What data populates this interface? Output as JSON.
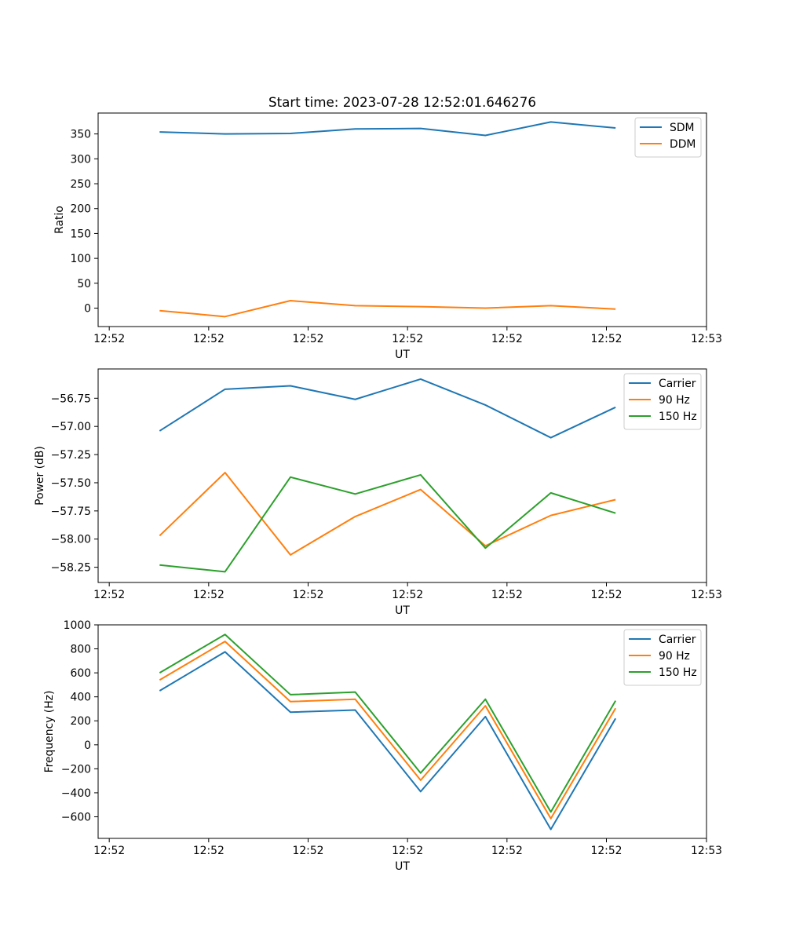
{
  "chart_data": [
    {
      "type": "line",
      "title": "Start time: 2023-07-28 12:52:01.646276",
      "xlabel": "UT",
      "ylabel": "Ratio",
      "xlim": [
        0,
        9.3
      ],
      "xticks": [
        0.17,
        1.69,
        3.21,
        4.73,
        6.25,
        7.77,
        9.3
      ],
      "xtick_labels": [
        "12:52",
        "12:52",
        "12:52",
        "12:52",
        "12:52",
        "12:52",
        "12:53"
      ],
      "ylim": [
        -37,
        392
      ],
      "yticks": [
        0,
        50,
        100,
        150,
        200,
        250,
        300,
        350
      ],
      "ytick_labels": [
        "0",
        "50",
        "100",
        "150",
        "200",
        "250",
        "300",
        "350"
      ],
      "legend_position": "top-right",
      "x": [
        0.94,
        1.94,
        2.94,
        3.93,
        4.93,
        5.92,
        6.92,
        7.91
      ],
      "series": [
        {
          "name": "SDM",
          "color": "#1f77b4",
          "values": [
            354,
            350,
            351,
            360,
            361,
            347,
            374,
            362
          ]
        },
        {
          "name": "DDM",
          "color": "#ff7f0e",
          "values": [
            -5,
            -17,
            15,
            5,
            3,
            0,
            5,
            -2
          ]
        }
      ]
    },
    {
      "type": "line",
      "title": "",
      "xlabel": "UT",
      "ylabel": "Power (dB)",
      "xlim": [
        0,
        9.3
      ],
      "xticks": [
        0.17,
        1.69,
        3.21,
        4.73,
        6.25,
        7.77,
        9.3
      ],
      "xtick_labels": [
        "12:52",
        "12:52",
        "12:52",
        "12:52",
        "12:52",
        "12:52",
        "12:53"
      ],
      "ylim": [
        -58.385,
        -56.49
      ],
      "yticks": [
        -58.25,
        -58.0,
        -57.75,
        -57.5,
        -57.25,
        -57.0,
        -56.75
      ],
      "ytick_labels": [
        "−58.25",
        "−58.00",
        "−57.75",
        "−57.50",
        "−57.25",
        "−57.00",
        "−56.75"
      ],
      "legend_position": "top-right",
      "x": [
        0.94,
        1.94,
        2.94,
        3.93,
        4.93,
        5.92,
        6.92,
        7.91
      ],
      "series": [
        {
          "name": "Carrier",
          "color": "#1f77b4",
          "values": [
            -57.04,
            -56.67,
            -56.64,
            -56.76,
            -56.58,
            -56.81,
            -57.1,
            -56.83
          ]
        },
        {
          "name": "90 Hz",
          "color": "#ff7f0e",
          "values": [
            -57.97,
            -57.41,
            -58.14,
            -57.8,
            -57.56,
            -58.06,
            -57.79,
            -57.65
          ]
        },
        {
          "name": "150 Hz",
          "color": "#2ca02c",
          "values": [
            -58.23,
            -58.29,
            -57.45,
            -57.6,
            -57.43,
            -58.08,
            -57.59,
            -57.77
          ]
        }
      ]
    },
    {
      "type": "line",
      "title": "",
      "xlabel": "UT",
      "ylabel": "Frequency (Hz)",
      "xlim": [
        0,
        9.3
      ],
      "xticks": [
        0.17,
        1.69,
        3.21,
        4.73,
        6.25,
        7.77,
        9.3
      ],
      "xtick_labels": [
        "12:52",
        "12:52",
        "12:52",
        "12:52",
        "12:52",
        "12:52",
        "12:53"
      ],
      "ylim": [
        -780,
        1000
      ],
      "yticks": [
        -600,
        -400,
        -200,
        0,
        200,
        400,
        600,
        800,
        1000
      ],
      "ytick_labels": [
        "−600",
        "−400",
        "−200",
        "0",
        "200",
        "400",
        "600",
        "800",
        "1000"
      ],
      "legend_position": "top-right",
      "x": [
        0.94,
        1.94,
        2.94,
        3.93,
        4.93,
        5.92,
        6.92,
        7.91
      ],
      "series": [
        {
          "name": "Carrier",
          "color": "#1f77b4",
          "values": [
            450,
            775,
            272,
            290,
            -390,
            235,
            -705,
            220
          ]
        },
        {
          "name": "90 Hz",
          "color": "#ff7f0e",
          "values": [
            540,
            862,
            360,
            380,
            -295,
            325,
            -615,
            305
          ]
        },
        {
          "name": "150 Hz",
          "color": "#2ca02c",
          "values": [
            600,
            920,
            418,
            440,
            -235,
            380,
            -560,
            368
          ]
        }
      ]
    }
  ]
}
